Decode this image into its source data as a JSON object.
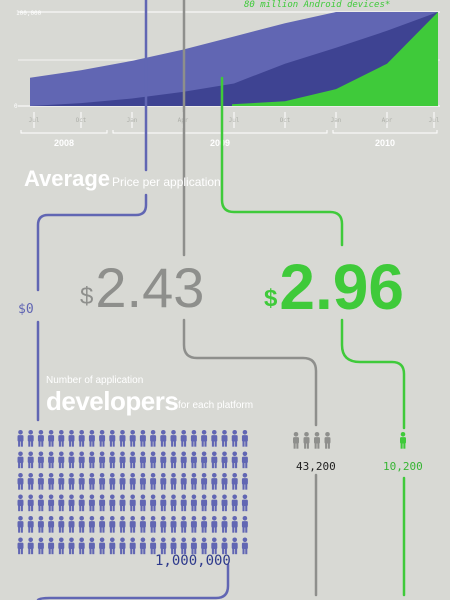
{
  "colors": {
    "background": "#d8d9d4",
    "blue": "#6166b3",
    "blue_dark": "#3e4392",
    "gray": "#8e8f8c",
    "green": "#3fca3a",
    "white": "#ffffff"
  },
  "chart_data": [
    {
      "type": "area",
      "title": "",
      "y_tick_labels": [
        "100,000",
        "0"
      ],
      "ylim": [
        0,
        100000
      ],
      "year_labels": [
        "2008",
        "2009",
        "2010"
      ],
      "x_tick_labels": [
        "Jul",
        "Oct",
        "Jan",
        "Apr",
        "Jul",
        "Oct",
        "Jan",
        "Apr",
        "Jul"
      ],
      "grid": true,
      "annotation": "80 million Android devices*",
      "series": [
        {
          "color": "#6166b3",
          "values": [
            30000,
            38000,
            48000,
            60000,
            74000,
            88000,
            100000,
            100000,
            100000
          ]
        },
        {
          "color": "#3e4392",
          "values": [
            0,
            3000,
            8000,
            15000,
            24000,
            45000,
            62000,
            80000,
            100000
          ]
        },
        {
          "color": "#3fca3a",
          "values": [
            0,
            0,
            0,
            0,
            2000,
            5000,
            18000,
            45000,
            100000
          ]
        }
      ]
    },
    {
      "type": "pictogram",
      "series": [
        {
          "color": "#6166b3",
          "value": "1,000,000"
        },
        {
          "color": "#8e8f8c",
          "value": "43,200"
        },
        {
          "color": "#3fca3a",
          "value": "10,200"
        }
      ]
    }
  ],
  "price": {
    "title_big": "Average",
    "title_small": "Price per application",
    "zero_value": "$0",
    "mid_value": "2.43",
    "right_value": "2.96",
    "currency": "$"
  },
  "developers": {
    "label_small": "Number of application",
    "label_big": "developers",
    "label_tail": "for each platform",
    "count_a": "1,000,000",
    "count_b": "43,200",
    "count_c": "10,200"
  },
  "icons": [
    "person-icon"
  ]
}
